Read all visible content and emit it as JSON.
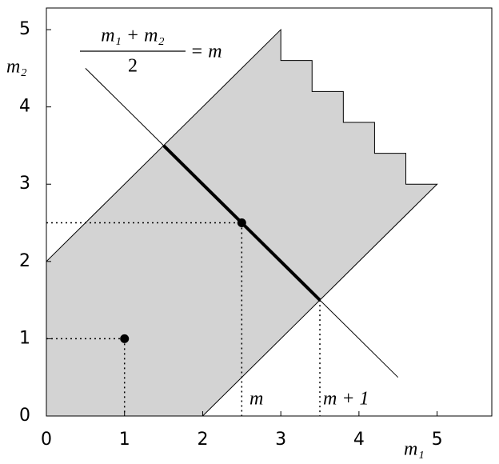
{
  "chart_data": {
    "type": "region",
    "xlabel": "m₁",
    "ylabel": "m₂",
    "equation": {
      "numerator": "m₁ + m₂",
      "denominator": "2",
      "rhs": "= m"
    },
    "annotations": [
      "m",
      "m + 1"
    ],
    "xlim": [
      0,
      5.7
    ],
    "ylim": [
      0,
      5.28
    ],
    "xticks": [
      0,
      1,
      2,
      3,
      4,
      5
    ],
    "yticks": [
      0,
      1,
      2,
      3,
      4,
      5
    ],
    "region": {
      "color": "#d3d3d3",
      "x": [
        0,
        2,
        5,
        4.6,
        4.6,
        4.2,
        4.2,
        3.8,
        3.8,
        3.4,
        3.4,
        3,
        3,
        0
      ],
      "y": [
        0,
        0,
        3,
        3,
        3.4,
        3.4,
        3.8,
        3.8,
        4.2,
        4.2,
        4.6,
        4.6,
        5,
        2
      ]
    },
    "lines": [
      {
        "x": [
          0.5,
          4.5
        ],
        "y": [
          4.5,
          0.5
        ],
        "width": 1
      },
      {
        "x": [
          1.5,
          3.5
        ],
        "y": [
          3.5,
          1.5
        ],
        "width": 4
      }
    ],
    "points": {
      "x": [
        1,
        2.5
      ],
      "y": [
        1,
        2.5
      ]
    },
    "drops": [
      {
        "x": 1,
        "y": 1,
        "horizontal": true
      },
      {
        "x": 2.5,
        "y": 2.5,
        "horizontal": true
      },
      {
        "x": 3.5,
        "y": 1.5,
        "horizontal": false
      }
    ]
  }
}
